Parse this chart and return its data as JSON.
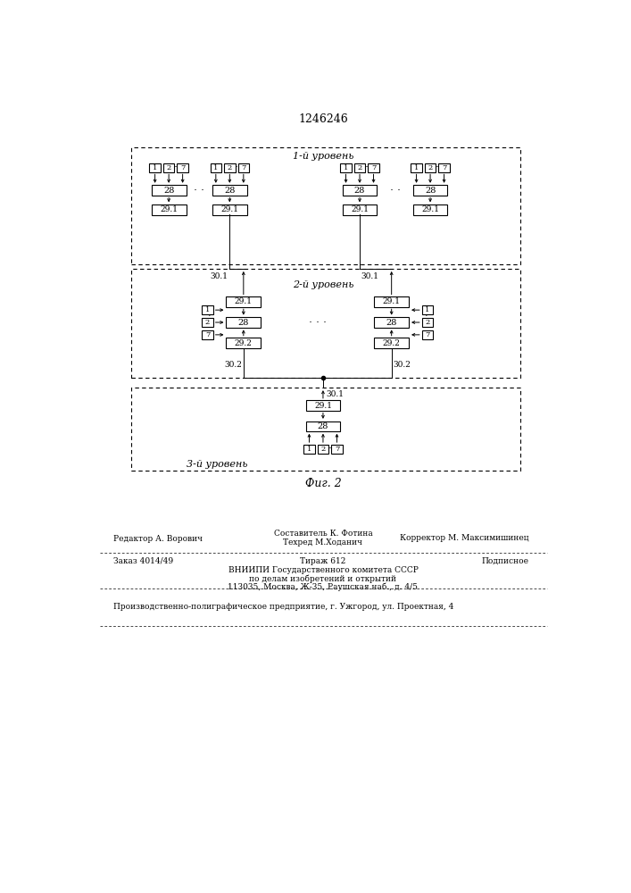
{
  "title": "1246246",
  "fig_caption": "Фиг. 2",
  "background": "#ffffff",
  "level1_label": "1-й уровень",
  "level2_label": "2-й уровень",
  "level3_label": "3-й уровень"
}
